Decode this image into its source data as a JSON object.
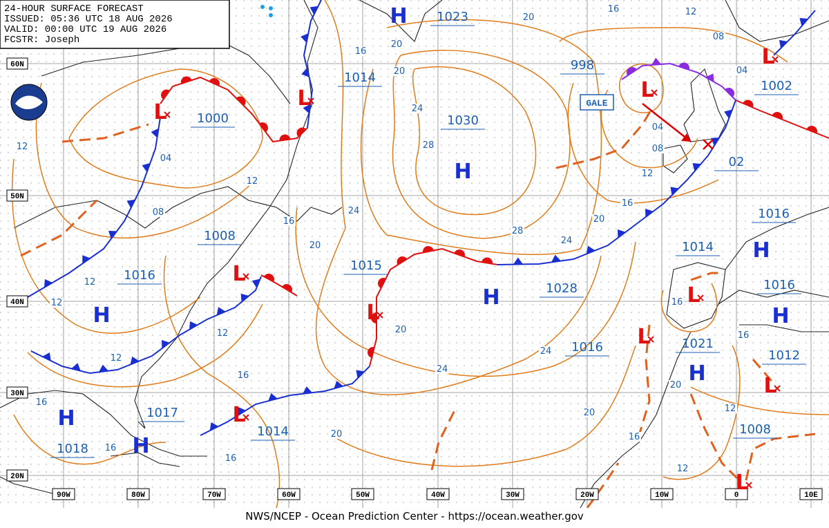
{
  "header": {
    "lines": [
      "24-HOUR SURFACE FORECAST",
      "ISSUED: 05:36 UTC 18 AUG 2026",
      "VALID: 00:00 UTC 19 AUG 2026",
      "FCSTR: Joseph"
    ]
  },
  "lat_labels": [
    "60N",
    "50N",
    "40N",
    "30N",
    "20N"
  ],
  "lon_labels": [
    "90W",
    "80W",
    "70W",
    "60W",
    "50W",
    "40W",
    "30W",
    "20W",
    "10W",
    "0",
    "10E"
  ],
  "pressure_centers": [
    "1023",
    "1014",
    "1000",
    "1030",
    "998",
    "1002",
    "02",
    "1016",
    "1008",
    "1015",
    "1014",
    "1016",
    "1028",
    "1016",
    "1016",
    "1021",
    "1012",
    "1017",
    "1014",
    "1008",
    "1018"
  ],
  "isobar_labels": [
    "16",
    "12",
    "20",
    "16",
    "20",
    "20",
    "08",
    "04",
    "24",
    "28",
    "12",
    "04",
    "04",
    "08",
    "12",
    "12",
    "16",
    "08",
    "24",
    "16",
    "20",
    "28",
    "24",
    "20",
    "12",
    "16",
    "12",
    "20",
    "12",
    "16",
    "24",
    "12",
    "24",
    "16",
    "20",
    "16",
    "12",
    "20",
    "20",
    "16",
    "16",
    "16",
    "12"
  ],
  "high_symbol": "H",
  "low_symbol": "L",
  "gale": "GALE",
  "footer": "NWS/NCEP - Ocean Prediction Center - https://ocean.weather.gov"
}
